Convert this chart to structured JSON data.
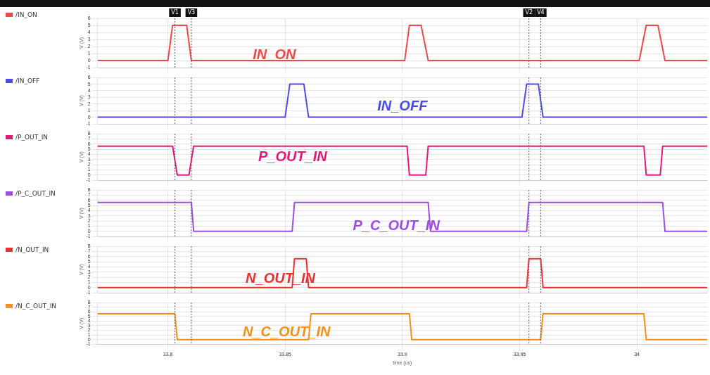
{
  "chart_data": [
    {
      "type": "line",
      "ylabel": "V (V)",
      "xlim": [
        33.77,
        34.03
      ],
      "xticks": [
        33.8,
        33.85,
        33.9,
        33.95,
        34.0
      ],
      "ylim": [
        -1,
        6
      ],
      "yticks": [
        -1,
        0,
        1,
        2,
        3,
        4,
        5,
        6
      ],
      "grid": true,
      "legend": "left",
      "tick_labels": "y",
      "annotations": [
        "IN_ON"
      ],
      "ref_lines": [
        {
          "axis": "x",
          "value": 33.803,
          "label": "V1"
        },
        {
          "axis": "x",
          "value": 33.81,
          "label": "V3"
        },
        {
          "axis": "x",
          "value": 33.954,
          "label": "V2"
        },
        {
          "axis": "x",
          "value": 33.959,
          "label": "V4"
        }
      ],
      "series": [
        {
          "name": "/IN_ON",
          "color": "#f04848",
          "x": [
            33.77,
            33.8,
            33.802,
            33.808,
            33.81,
            33.901,
            33.903,
            33.908,
            33.911,
            34.001,
            34.004,
            34.009,
            34.012,
            34.03
          ],
          "values": [
            0,
            0,
            5,
            5,
            0,
            0,
            5,
            5,
            0,
            0,
            5,
            5,
            0,
            0
          ]
        }
      ]
    },
    {
      "type": "line",
      "ylabel": "V (V)",
      "xlim": [
        33.77,
        34.03
      ],
      "xticks": [
        33.8,
        33.85,
        33.9,
        33.95,
        34.0
      ],
      "ylim": [
        -1,
        6
      ],
      "yticks": [
        -1,
        0,
        1,
        2,
        3,
        4,
        5,
        6
      ],
      "grid": true,
      "legend": "left",
      "tick_labels": "y",
      "annotations": [
        "IN_OFF"
      ],
      "ref_lines": [
        {
          "axis": "x",
          "value": 33.803
        },
        {
          "axis": "x",
          "value": 33.81
        },
        {
          "axis": "x",
          "value": 33.954
        },
        {
          "axis": "x",
          "value": 33.959
        }
      ],
      "series": [
        {
          "name": "/IN_OFF",
          "color": "#4b4be8",
          "x": [
            33.77,
            33.85,
            33.852,
            33.858,
            33.86,
            33.951,
            33.953,
            33.958,
            33.96,
            34.03
          ],
          "values": [
            0,
            0,
            5,
            5,
            0,
            0,
            5,
            5,
            0,
            0
          ]
        }
      ]
    },
    {
      "type": "line",
      "ylabel": "V (V)",
      "xlim": [
        33.77,
        34.03
      ],
      "xticks": [
        33.8,
        33.85,
        33.9,
        33.95,
        34.0
      ],
      "ylim": [
        -1,
        8
      ],
      "yticks": [
        -1,
        0,
        1,
        2,
        3,
        4,
        5,
        6,
        7,
        8
      ],
      "grid": true,
      "legend": "left",
      "tick_labels": "y",
      "annotations": [
        "P_OUT_IN"
      ],
      "ref_lines": [
        {
          "axis": "x",
          "value": 33.803
        },
        {
          "axis": "x",
          "value": 33.81
        },
        {
          "axis": "x",
          "value": 33.954
        },
        {
          "axis": "x",
          "value": 33.959
        }
      ],
      "series": [
        {
          "name": "/P_OUT_IN",
          "color": "#e0197a",
          "x": [
            33.77,
            33.802,
            33.804,
            33.809,
            33.811,
            33.902,
            33.903,
            33.91,
            33.911,
            34.003,
            34.004,
            34.01,
            34.011,
            34.03
          ],
          "values": [
            5.6,
            5.6,
            0,
            0,
            5.6,
            5.6,
            0,
            0,
            5.6,
            5.6,
            0,
            0,
            5.6,
            5.6
          ]
        }
      ]
    },
    {
      "type": "line",
      "ylabel": "V (V)",
      "xlim": [
        33.77,
        34.03
      ],
      "xticks": [
        33.8,
        33.85,
        33.9,
        33.95,
        34.0
      ],
      "ylim": [
        -1,
        8
      ],
      "yticks": [
        -1,
        0,
        1,
        2,
        3,
        4,
        5,
        6,
        7,
        8
      ],
      "grid": true,
      "legend": "left",
      "tick_labels": "y",
      "annotations": [
        "P_C_OUT_IN"
      ],
      "ref_lines": [
        {
          "axis": "x",
          "value": 33.803
        },
        {
          "axis": "x",
          "value": 33.81
        },
        {
          "axis": "x",
          "value": 33.954
        },
        {
          "axis": "x",
          "value": 33.959
        }
      ],
      "series": [
        {
          "name": "/P_C_OUT_IN",
          "color": "#9b4de0",
          "x": [
            33.77,
            33.81,
            33.811,
            33.853,
            33.854,
            33.911,
            33.912,
            33.953,
            33.954,
            34.011,
            34.012,
            34.03
          ],
          "values": [
            5.6,
            5.6,
            0,
            0,
            5.6,
            5.6,
            0,
            0,
            5.6,
            5.6,
            0,
            0
          ]
        }
      ]
    },
    {
      "type": "line",
      "ylabel": "V (V)",
      "xlim": [
        33.77,
        34.03
      ],
      "xticks": [
        33.8,
        33.85,
        33.9,
        33.95,
        34.0
      ],
      "ylim": [
        -1,
        8
      ],
      "yticks": [
        -1,
        0,
        1,
        2,
        3,
        4,
        5,
        6,
        7,
        8
      ],
      "grid": true,
      "legend": "left",
      "tick_labels": "y",
      "annotations": [
        "N_OUT_IN"
      ],
      "ref_lines": [
        {
          "axis": "x",
          "value": 33.803
        },
        {
          "axis": "x",
          "value": 33.81
        },
        {
          "axis": "x",
          "value": 33.954
        },
        {
          "axis": "x",
          "value": 33.959
        }
      ],
      "series": [
        {
          "name": "/N_OUT_IN",
          "color": "#e83232",
          "x": [
            33.77,
            33.853,
            33.854,
            33.859,
            33.86,
            33.953,
            33.954,
            33.959,
            33.96,
            34.03
          ],
          "values": [
            0,
            0,
            5.6,
            5.6,
            0,
            0,
            5.6,
            5.6,
            0,
            0
          ]
        }
      ]
    },
    {
      "type": "line",
      "ylabel": "V (V)",
      "xlabel": "time (us)",
      "xlim": [
        33.77,
        34.03
      ],
      "xticks": [
        33.8,
        33.85,
        33.9,
        33.95,
        34.0
      ],
      "ylim": [
        -1,
        8
      ],
      "yticks": [
        -1,
        0,
        1,
        2,
        3,
        4,
        5,
        6,
        7,
        8
      ],
      "grid": true,
      "legend": "left",
      "annotations": [
        "N_C_OUT_IN"
      ],
      "ref_lines": [
        {
          "axis": "x",
          "value": 33.803
        },
        {
          "axis": "x",
          "value": 33.81
        },
        {
          "axis": "x",
          "value": 33.954
        },
        {
          "axis": "x",
          "value": 33.959
        }
      ],
      "series": [
        {
          "name": "/N_C_OUT_IN",
          "color": "#f0901e",
          "x": [
            33.77,
            33.803,
            33.804,
            33.86,
            33.861,
            33.903,
            33.904,
            33.959,
            33.96,
            34.003,
            34.004,
            34.03
          ],
          "values": [
            5.6,
            5.6,
            0,
            0,
            5.6,
            5.6,
            0,
            0,
            5.6,
            5.6,
            0,
            0
          ]
        }
      ]
    }
  ]
}
